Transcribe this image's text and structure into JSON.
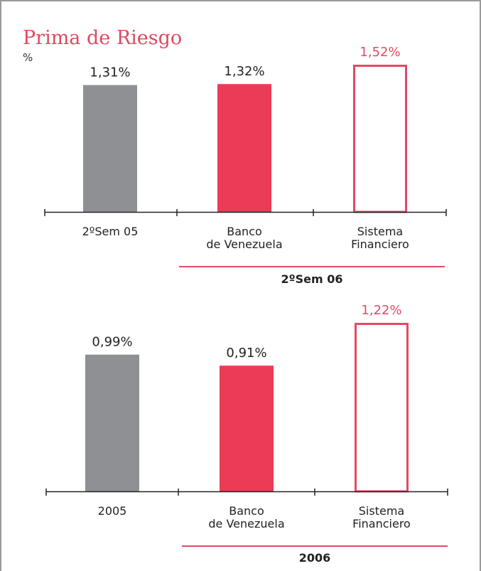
{
  "title": "Prima de Riesgo",
  "unit": "%",
  "colors": {
    "gray": "#8f9094",
    "red": "#ea3b57",
    "outline": "#e14a64",
    "axis": "#222222",
    "text": "#222222"
  },
  "chart_data": [
    {
      "type": "bar",
      "title": "Prima de Riesgo",
      "ylabel": "%",
      "categories": [
        "2ºSem 05",
        "Banco de Venezuela",
        "Sistema Financiero"
      ],
      "category_lines": [
        [
          "2ºSem 05"
        ],
        [
          "Banco",
          "de Venezuela"
        ],
        [
          "Sistema",
          "Financiero"
        ]
      ],
      "values": [
        1.31,
        1.32,
        1.52
      ],
      "value_labels": [
        "1,31%",
        "1,32%",
        "1,52%"
      ],
      "bar_styles": [
        "gray",
        "red",
        "outline"
      ],
      "group_label": "2ºSem 06",
      "ylim": [
        0,
        1.52
      ]
    },
    {
      "type": "bar",
      "categories": [
        "2005",
        "Banco de Venezuela",
        "Sistema Financiero"
      ],
      "category_lines": [
        [
          "2005"
        ],
        [
          "Banco",
          "de Venezuela"
        ],
        [
          "Sistema",
          "Financiero"
        ]
      ],
      "values": [
        0.99,
        0.91,
        1.22
      ],
      "value_labels": [
        "0,99%",
        "0,91%",
        "1,22%"
      ],
      "bar_styles": [
        "gray",
        "red",
        "outline"
      ],
      "group_label": "2006",
      "ylim": [
        0,
        1.22
      ]
    }
  ]
}
